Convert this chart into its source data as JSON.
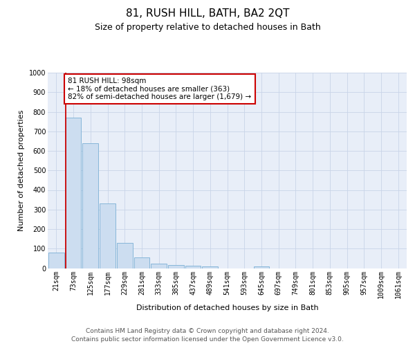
{
  "title": "81, RUSH HILL, BATH, BA2 2QT",
  "subtitle": "Size of property relative to detached houses in Bath",
  "xlabel": "Distribution of detached houses by size in Bath",
  "ylabel": "Number of detached properties",
  "categories": [
    "21sqm",
    "73sqm",
    "125sqm",
    "177sqm",
    "229sqm",
    "281sqm",
    "333sqm",
    "385sqm",
    "437sqm",
    "489sqm",
    "541sqm",
    "593sqm",
    "645sqm",
    "697sqm",
    "749sqm",
    "801sqm",
    "853sqm",
    "905sqm",
    "957sqm",
    "1009sqm",
    "1061sqm"
  ],
  "values": [
    80,
    770,
    640,
    330,
    130,
    55,
    22,
    17,
    13,
    8,
    0,
    0,
    10,
    0,
    0,
    0,
    0,
    0,
    0,
    0,
    0
  ],
  "bar_color": "#ccddf0",
  "bar_edge_color": "#7aafd4",
  "vline_x_idx": 1,
  "vline_color": "#cc0000",
  "annotation_text": "81 RUSH HILL: 98sqm\n← 18% of detached houses are smaller (363)\n82% of semi-detached houses are larger (1,679) →",
  "annotation_box_color": "#ffffff",
  "annotation_box_edge_color": "#cc0000",
  "ylim": [
    0,
    1000
  ],
  "yticks": [
    0,
    100,
    200,
    300,
    400,
    500,
    600,
    700,
    800,
    900,
    1000
  ],
  "grid_color": "#c8d4e8",
  "background_color": "#e8eef8",
  "footer_line1": "Contains HM Land Registry data © Crown copyright and database right 2024.",
  "footer_line2": "Contains public sector information licensed under the Open Government Licence v3.0.",
  "title_fontsize": 11,
  "subtitle_fontsize": 9,
  "axis_label_fontsize": 8,
  "tick_fontsize": 7,
  "annotation_fontsize": 7.5,
  "footer_fontsize": 6.5
}
